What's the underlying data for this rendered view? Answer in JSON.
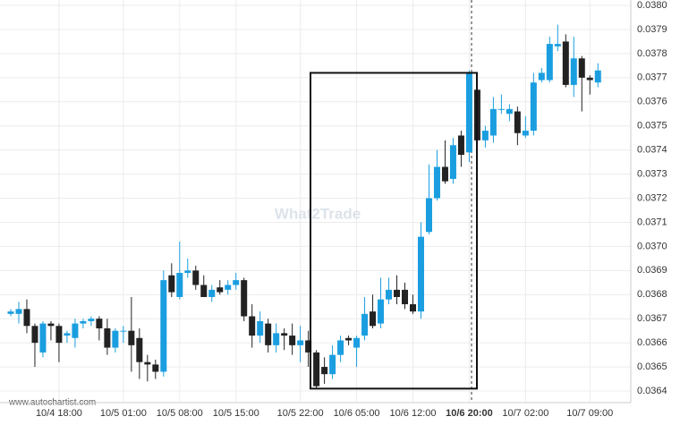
{
  "chart_data": {
    "type": "candlestick",
    "watermark": "What2Trade",
    "source": "www.autochartist.com",
    "categories": [
      null,
      null,
      null,
      null,
      null,
      null,
      "10/4 18:00",
      null,
      null,
      null,
      null,
      null,
      null,
      null,
      "10/5 01:00",
      null,
      null,
      null,
      null,
      null,
      null,
      "10/5 08:00",
      null,
      null,
      null,
      null,
      null,
      null,
      "10/5 15:00",
      null,
      null,
      null,
      null,
      null,
      null,
      null,
      "10/5 22:00",
      null,
      null,
      null,
      null,
      null,
      null,
      "10/6 05:00",
      null,
      null,
      null,
      null,
      null,
      null,
      "10/6 12:00",
      null,
      null,
      null,
      null,
      null,
      null,
      "10/6 20:00",
      null,
      null,
      null,
      null,
      null,
      null,
      "10/7 02:00",
      null,
      null,
      null,
      null,
      null,
      null,
      null,
      "10/7 09:00",
      null
    ],
    "open": [
      0.03672,
      0.03672,
      0.03674,
      0.03667,
      0.03656,
      0.03668,
      0.03667,
      0.03663,
      0.03662,
      0.03668,
      0.03669,
      0.0367,
      0.03666,
      0.03658,
      0.03665,
      0.03665,
      0.03662,
      0.03652,
      0.03651,
      0.03648,
      0.03688,
      0.03679,
      0.03689,
      0.0369,
      0.03684,
      0.03679,
      0.03683,
      0.03682,
      0.03684,
      0.03686,
      0.03671,
      0.03663,
      0.03668,
      0.03659,
      0.03664,
      0.03663,
      0.03659,
      0.03661,
      0.03656,
      0.0365,
      0.03647,
      0.03655,
      0.03662,
      0.03658,
      0.03663,
      0.03673,
      0.03668,
      0.03678,
      0.03682,
      0.03682,
      0.03676,
      0.03673,
      0.03706,
      0.0372,
      0.03733,
      0.03728,
      0.03746,
      0.03739,
      0.03765,
      0.03744,
      0.03746,
      0.03757,
      0.03755,
      0.03756,
      0.03746,
      0.03748,
      0.03769,
      0.03769,
      0.03783,
      0.03785,
      0.03767,
      0.03778,
      0.0377,
      0.03768
    ],
    "high": [
      0.03674,
      0.03677,
      0.03678,
      0.03668,
      0.03669,
      0.03669,
      0.03668,
      0.03665,
      0.0367,
      0.0367,
      0.03671,
      0.03671,
      0.0367,
      0.03666,
      0.03667,
      0.03679,
      0.03666,
      0.03655,
      0.03653,
      0.0369,
      0.03693,
      0.03702,
      0.03695,
      0.03692,
      0.03688,
      0.03684,
      0.03686,
      0.03686,
      0.03689,
      0.03687,
      0.03676,
      0.03673,
      0.0367,
      0.03668,
      0.03666,
      0.03668,
      0.03667,
      0.03665,
      0.03657,
      0.03654,
      0.03659,
      0.03663,
      0.03663,
      0.03663,
      0.03679,
      0.0368,
      0.03687,
      0.03687,
      0.03688,
      0.03685,
      0.0368,
      0.0371,
      0.03734,
      0.0374,
      0.03744,
      0.03745,
      0.03748,
      0.03773,
      0.0377,
      0.0375,
      0.03762,
      0.03763,
      0.03759,
      0.03758,
      0.03754,
      0.03772,
      0.03774,
      0.03787,
      0.03792,
      0.03788,
      0.03787,
      0.03779,
      0.03771,
      0.03776
    ],
    "low": [
      0.03671,
      0.03668,
      0.03664,
      0.0365,
      0.03654,
      0.03661,
      0.03652,
      0.0366,
      0.03658,
      0.03666,
      0.03667,
      0.03661,
      0.03655,
      0.03656,
      0.0366,
      0.03648,
      0.03645,
      0.03644,
      0.03645,
      0.03646,
      0.03679,
      0.03678,
      0.03687,
      0.03682,
      0.03679,
      0.03677,
      0.0368,
      0.0368,
      0.03682,
      0.03669,
      0.03658,
      0.0366,
      0.03656,
      0.03656,
      0.03657,
      0.03655,
      0.03652,
      0.0365,
      0.03641,
      0.03643,
      0.03645,
      0.03652,
      0.03659,
      0.0365,
      0.03661,
      0.03666,
      0.03666,
      0.03676,
      0.03676,
      0.03674,
      0.03672,
      0.0367,
      0.03705,
      0.03719,
      0.03726,
      0.03726,
      0.03733,
      0.03735,
      0.0374,
      0.03741,
      0.03743,
      0.03755,
      0.03752,
      0.03742,
      0.03745,
      0.03746,
      0.03768,
      0.03768,
      0.03781,
      0.03766,
      0.03762,
      0.03756,
      0.03763,
      0.03766
    ],
    "close": [
      0.03673,
      0.03674,
      0.03667,
      0.0366,
      0.03668,
      0.03667,
      0.0366,
      0.03664,
      0.03668,
      0.03669,
      0.0367,
      0.03666,
      0.03658,
      0.03665,
      0.03665,
      0.03659,
      0.03652,
      0.03651,
      0.03648,
      0.03686,
      0.03681,
      0.03689,
      0.0369,
      0.03684,
      0.03679,
      0.03682,
      0.03681,
      0.03684,
      0.03686,
      0.03671,
      0.03663,
      0.03669,
      0.03659,
      0.03664,
      0.03663,
      0.03659,
      0.03661,
      0.03656,
      0.03642,
      0.03647,
      0.03655,
      0.03661,
      0.03661,
      0.03662,
      0.03672,
      0.03667,
      0.03678,
      0.03682,
      0.03679,
      0.03676,
      0.03673,
      0.03704,
      0.0372,
      0.03733,
      0.03727,
      0.03742,
      0.03738,
      0.03772,
      0.03744,
      0.03748,
      0.03757,
      0.03757,
      0.03757,
      0.03747,
      0.03748,
      0.03768,
      0.03772,
      0.03784,
      0.03784,
      0.03767,
      0.03778,
      0.0377,
      0.03769,
      0.03773
    ],
    "up_color": "#1a9ee0",
    "down_color": "#222222",
    "box": {
      "high": 0.03772,
      "low": 0.03641
    },
    "ylim": [
      0.03635,
      0.038
    ],
    "yticks": [
      0.0364,
      0.0365,
      0.0366,
      0.0367,
      0.0368,
      0.0369,
      {
        "value": 0.037,
        "label": "0.0370"
      },
      0.0371,
      0.0372,
      0.0373,
      0.0374,
      0.0375,
      0.0376,
      0.0377,
      0.0378,
      0.0379,
      {
        "value": 0.038,
        "label": "0.0380"
      }
    ],
    "grid": true
  }
}
